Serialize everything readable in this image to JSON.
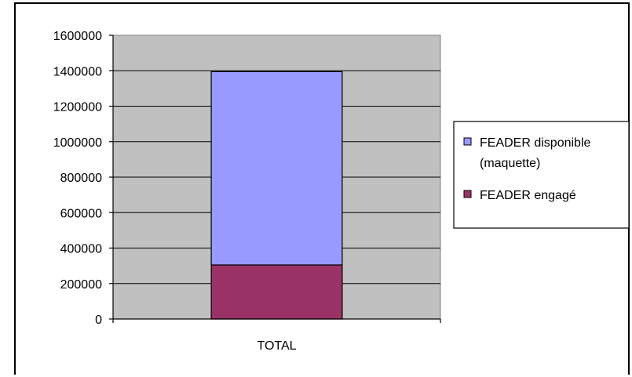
{
  "chart_data": {
    "type": "bar",
    "stacked": true,
    "categories": [
      "TOTAL"
    ],
    "series": [
      {
        "name": "FEADER engagé",
        "values": [
          305000
        ],
        "color": "#993366"
      },
      {
        "name": "FEADER disponible (maquette)",
        "values": [
          1090000
        ],
        "color": "#9999ff"
      }
    ],
    "ylim": [
      0,
      1600000
    ],
    "yticks": [
      "0",
      "200000",
      "400000",
      "600000",
      "800000",
      "1000000",
      "1200000",
      "1400000",
      "1600000"
    ],
    "grid": true,
    "legend_placement": "right",
    "legend": {
      "item1_line1": "FEADER disponible",
      "item1_line2": "(maquette)",
      "item2": "FEADER engagé"
    },
    "plot_background": "#c0c0c0"
  }
}
